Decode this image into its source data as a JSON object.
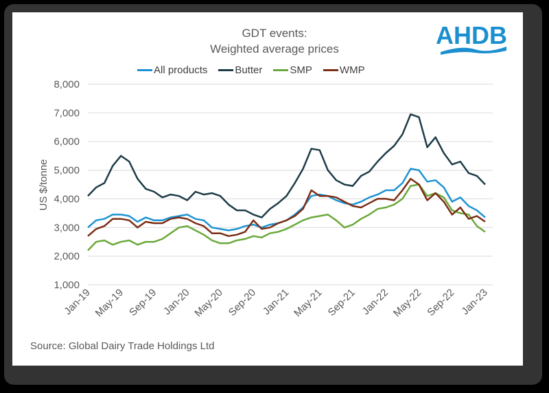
{
  "logo": {
    "text": "AHDB",
    "color": "#1B8FCF"
  },
  "source": "Source: Global Dairy Trade Holdings Ltd",
  "chart_data": {
    "type": "line",
    "title": "GDT events:",
    "subtitle": "Weighted average prices",
    "xlabel": "",
    "ylabel": "US $/tonne",
    "ylim": [
      1000,
      8000
    ],
    "yticks": [
      "1,000",
      "2,000",
      "3,000",
      "4,000",
      "5,000",
      "6,000",
      "7,000",
      "8,000"
    ],
    "ytick_values": [
      1000,
      2000,
      3000,
      4000,
      5000,
      6000,
      7000,
      8000
    ],
    "xticks": [
      "Jan-19",
      "May-19",
      "Sep-19",
      "Jan-20",
      "May-20",
      "Sep-20",
      "Jan-21",
      "May-21",
      "Sep-21",
      "Jan-22",
      "May-22",
      "Sep-22",
      "Jan-23"
    ],
    "xtick_month_index": [
      0,
      4,
      8,
      12,
      16,
      20,
      24,
      28,
      32,
      36,
      40,
      44,
      48
    ],
    "x": [
      "Jan-19",
      "Feb-19",
      "Mar-19",
      "Apr-19",
      "May-19",
      "Jun-19",
      "Jul-19",
      "Aug-19",
      "Sep-19",
      "Oct-19",
      "Nov-19",
      "Dec-19",
      "Jan-20",
      "Feb-20",
      "Mar-20",
      "Apr-20",
      "May-20",
      "Jun-20",
      "Jul-20",
      "Aug-20",
      "Sep-20",
      "Oct-20",
      "Nov-20",
      "Dec-20",
      "Jan-21",
      "Feb-21",
      "Mar-21",
      "Apr-21",
      "May-21",
      "Jun-21",
      "Jul-21",
      "Aug-21",
      "Sep-21",
      "Oct-21",
      "Nov-21",
      "Dec-21",
      "Jan-22",
      "Feb-22",
      "Mar-22",
      "Apr-22",
      "May-22",
      "Jun-22",
      "Jul-22",
      "Aug-22",
      "Sep-22",
      "Oct-22",
      "Nov-22",
      "Dec-22",
      "Jan-23"
    ],
    "grid": true,
    "legend_position": "top",
    "series": [
      {
        "name": "All products",
        "color": "#1C92D2",
        "values": [
          3000,
          3250,
          3300,
          3450,
          3450,
          3400,
          3200,
          3350,
          3250,
          3250,
          3350,
          3400,
          3450,
          3300,
          3250,
          3000,
          2950,
          2900,
          2950,
          3050,
          3100,
          3000,
          3100,
          3150,
          3250,
          3450,
          3700,
          4100,
          4150,
          4100,
          3950,
          3850,
          3800,
          3900,
          4050,
          4150,
          4300,
          4300,
          4550,
          5050,
          5000,
          4600,
          4650,
          4400,
          3900,
          4050,
          3750,
          3600,
          3350
        ]
      },
      {
        "name": "Butter",
        "color": "#1D3B47",
        "values": [
          4100,
          4400,
          4550,
          5150,
          5500,
          5300,
          4700,
          4350,
          4250,
          4050,
          4150,
          4100,
          3950,
          4250,
          4150,
          4200,
          4100,
          3800,
          3600,
          3600,
          3450,
          3350,
          3650,
          3850,
          4100,
          4550,
          5050,
          5750,
          5700,
          5000,
          4650,
          4500,
          4450,
          4800,
          4950,
          5300,
          5600,
          5850,
          6250,
          6950,
          6850,
          5800,
          6150,
          5600,
          5200,
          5300,
          4900,
          4800,
          4500
        ]
      },
      {
        "name": "SMP",
        "color": "#6AA83A",
        "values": [
          2200,
          2500,
          2550,
          2400,
          2500,
          2550,
          2400,
          2500,
          2500,
          2600,
          2800,
          3000,
          3050,
          2900,
          2750,
          2550,
          2450,
          2450,
          2550,
          2600,
          2700,
          2650,
          2800,
          2850,
          2950,
          3100,
          3250,
          3350,
          3400,
          3450,
          3250,
          3000,
          3100,
          3300,
          3450,
          3650,
          3700,
          3800,
          4000,
          4450,
          4500,
          4100,
          4200,
          4050,
          3600,
          3500,
          3450,
          3050,
          2850
        ]
      },
      {
        "name": "WMP",
        "color": "#7B2D14",
        "values": [
          2700,
          2950,
          3050,
          3300,
          3300,
          3250,
          3000,
          3200,
          3150,
          3150,
          3300,
          3350,
          3300,
          3150,
          3050,
          2800,
          2800,
          2700,
          2750,
          2850,
          3250,
          2950,
          3000,
          3150,
          3250,
          3400,
          3650,
          4300,
          4100,
          4100,
          4050,
          3900,
          3750,
          3700,
          3850,
          4000,
          4000,
          3950,
          4300,
          4700,
          4500,
          3950,
          4200,
          3900,
          3450,
          3700,
          3300,
          3400,
          3200
        ]
      }
    ]
  }
}
